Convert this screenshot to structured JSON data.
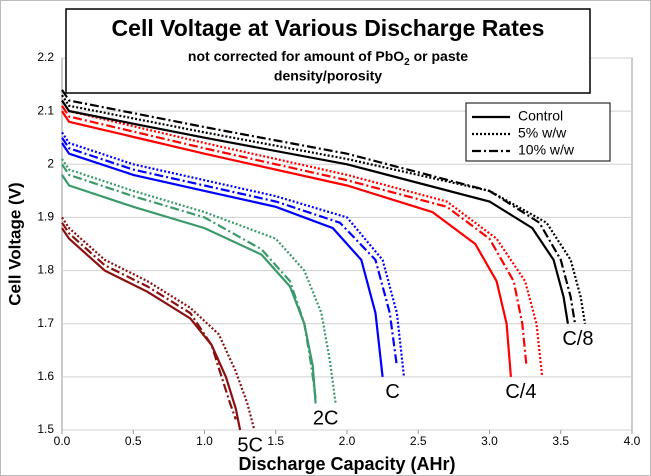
{
  "chart_data": {
    "type": "line",
    "title": "Cell Voltage at Various Discharge Rates",
    "subtitle": {
      "before": "not corrected for  amount of PbO",
      "sub": "2",
      "after": " or  paste",
      "line2": "density/porosity"
    },
    "x_label": "Discharge Capacity (AHr)",
    "y_label": "Cell Voltage (V)",
    "xlim": [
      0,
      4
    ],
    "ylim": [
      1.5,
      2.2
    ],
    "xticks": [
      {
        "value": 0,
        "label": "0.0"
      },
      {
        "value": 0.5,
        "label": "0.5"
      },
      {
        "value": 1,
        "label": "1.0"
      },
      {
        "value": 1.5,
        "label": "1.5"
      },
      {
        "value": 2,
        "label": "2.0"
      },
      {
        "value": 2.5,
        "label": "2.5"
      },
      {
        "value": 3,
        "label": "3.0"
      },
      {
        "value": 3.5,
        "label": "3.5"
      },
      {
        "value": 4,
        "label": "4.0"
      }
    ],
    "yticks": [
      1.5,
      1.6,
      1.7,
      1.8,
      1.9,
      2,
      2.1,
      2.2
    ],
    "grid": true,
    "legend": [
      {
        "label": "Control",
        "dash": "solid"
      },
      {
        "label": "5% w/w",
        "dash": "dotted"
      },
      {
        "label": "10% w/w",
        "dash": "dash-dot"
      }
    ],
    "groups": [
      {
        "name": "5C",
        "color": "#8b1010",
        "series": [
          {
            "dash": "solid",
            "x": [
              0,
              0.05,
              0.3,
              0.6,
              0.9,
              1.05,
              1.15,
              1.22,
              1.25
            ],
            "values": [
              1.88,
              1.86,
              1.8,
              1.76,
              1.71,
              1.66,
              1.6,
              1.54,
              1.5
            ]
          },
          {
            "dash": "dotted",
            "x": [
              0,
              0.05,
              0.3,
              0.6,
              0.9,
              1.1,
              1.22,
              1.3,
              1.35
            ],
            "values": [
              1.9,
              1.88,
              1.82,
              1.78,
              1.73,
              1.68,
              1.61,
              1.55,
              1.5
            ]
          },
          {
            "dash": "dash-dot",
            "x": [
              0,
              0.05,
              0.3,
              0.6,
              0.9,
              1.05,
              1.12,
              1.18,
              1.22
            ],
            "values": [
              1.89,
              1.87,
              1.81,
              1.77,
              1.72,
              1.66,
              1.6,
              1.55,
              1.52
            ]
          }
        ]
      },
      {
        "name": "2C",
        "color": "#3a9a6a",
        "series": [
          {
            "dash": "solid",
            "x": [
              0,
              0.05,
              0.5,
              1,
              1.4,
              1.6,
              1.7,
              1.76,
              1.78
            ],
            "values": [
              1.98,
              1.96,
              1.92,
              1.88,
              1.83,
              1.77,
              1.7,
              1.62,
              1.55
            ]
          },
          {
            "dash": "dotted",
            "x": [
              0,
              0.05,
              0.5,
              1,
              1.5,
              1.7,
              1.82,
              1.88,
              1.92
            ],
            "values": [
              2.01,
              1.99,
              1.95,
              1.91,
              1.86,
              1.8,
              1.72,
              1.63,
              1.55
            ]
          },
          {
            "dash": "dash-dot",
            "x": [
              0,
              0.05,
              0.5,
              1,
              1.4,
              1.6,
              1.7,
              1.75,
              1.78
            ],
            "values": [
              2,
              1.98,
              1.94,
              1.9,
              1.84,
              1.78,
              1.7,
              1.62,
              1.56
            ]
          }
        ]
      },
      {
        "name": "C",
        "color": "#0000ff",
        "series": [
          {
            "dash": "solid",
            "x": [
              0,
              0.05,
              0.5,
              1,
              1.5,
              1.9,
              2.1,
              2.2,
              2.25
            ],
            "values": [
              2.04,
              2.02,
              1.98,
              1.95,
              1.92,
              1.88,
              1.82,
              1.72,
              1.6
            ]
          },
          {
            "dash": "dotted",
            "x": [
              0,
              0.05,
              0.5,
              1,
              1.5,
              2,
              2.25,
              2.35,
              2.4
            ],
            "values": [
              2.06,
              2.04,
              2,
              1.97,
              1.94,
              1.9,
              1.82,
              1.72,
              1.6
            ]
          },
          {
            "dash": "dash-dot",
            "x": [
              0,
              0.05,
              0.5,
              1,
              1.5,
              1.95,
              2.2,
              2.3,
              2.35
            ],
            "values": [
              2.05,
              2.03,
              1.99,
              1.96,
              1.93,
              1.89,
              1.82,
              1.72,
              1.62
            ]
          }
        ]
      },
      {
        "name": "C/4",
        "color": "#ff0000",
        "series": [
          {
            "dash": "solid",
            "x": [
              0,
              0.05,
              1,
              2,
              2.6,
              2.9,
              3.05,
              3.12,
              3.15
            ],
            "values": [
              2.1,
              2.08,
              2.02,
              1.96,
              1.91,
              1.85,
              1.78,
              1.7,
              1.6
            ]
          },
          {
            "dash": "dotted",
            "x": [
              0,
              0.05,
              1,
              2,
              2.7,
              3.05,
              3.25,
              3.33,
              3.37
            ],
            "values": [
              2.12,
              2.1,
              2.04,
              1.98,
              1.93,
              1.86,
              1.78,
              1.7,
              1.6
            ]
          },
          {
            "dash": "dash-dot",
            "x": [
              0,
              0.05,
              1,
              2,
              2.7,
              3,
              3.17,
              3.23,
              3.26
            ],
            "values": [
              2.11,
              2.09,
              2.03,
              1.97,
              1.92,
              1.86,
              1.78,
              1.7,
              1.62
            ]
          }
        ]
      },
      {
        "name": "C/8",
        "color": "#000000",
        "series": [
          {
            "dash": "solid",
            "x": [
              0,
              0.05,
              1,
              2,
              3,
              3.3,
              3.45,
              3.52,
              3.55
            ],
            "values": [
              2.12,
              2.1,
              2.05,
              2,
              1.93,
              1.88,
              1.82,
              1.75,
              1.7
            ]
          },
          {
            "dash": "dotted",
            "x": [
              0,
              0.05,
              1,
              2,
              3,
              3.4,
              3.57,
              3.64,
              3.67
            ],
            "values": [
              2.13,
              2.11,
              2.06,
              2.01,
              1.95,
              1.89,
              1.82,
              1.75,
              1.7
            ]
          },
          {
            "dash": "dash-dot",
            "x": [
              0,
              0.05,
              1,
              2,
              3,
              3.35,
              3.5,
              3.57,
              3.6
            ],
            "values": [
              2.14,
              2.12,
              2.07,
              2.02,
              1.95,
              1.89,
              1.82,
              1.75,
              1.7
            ]
          }
        ]
      }
    ]
  }
}
